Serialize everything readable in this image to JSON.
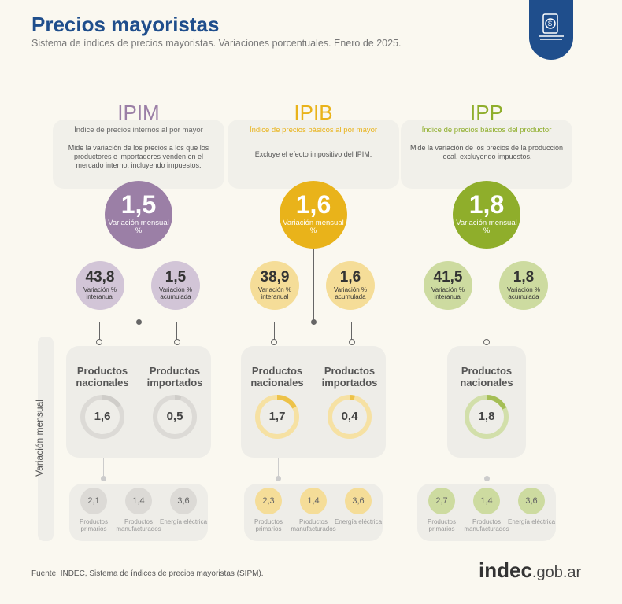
{
  "header": {
    "title": "Precios mayoristas",
    "subtitle": "Sistema de índices de precios mayoristas. Variaciones porcentuales. Enero de 2025.",
    "icon": "price-tag-document-icon"
  },
  "side_label": "Variación mensual",
  "labels": {
    "mensual": "Variación mensual %",
    "interanual": "Variación % interanual",
    "acumulada": "Variación % acumulada"
  },
  "columns": [
    {
      "name": "IPIM",
      "color": "#9b7fa6",
      "full": "Índice de precios internos al por mayor",
      "description": "Mide la variación de los precios a los que los productores e importadores venden en el mercado interno, incluyendo impuestos.",
      "mensual": "1,5",
      "interanual": "43,8",
      "acumulada": "1,5",
      "products": [
        {
          "label": "Productos nacionales",
          "value": "1,6"
        },
        {
          "label": "Productos importados",
          "value": "0,5"
        }
      ],
      "sub": [
        {
          "value": "2,1",
          "label": "Productos primarios"
        },
        {
          "value": "1,4",
          "label": "Productos manufacturados"
        },
        {
          "value": "3,6",
          "label": "Energía eléctrica"
        }
      ]
    },
    {
      "name": "IPIB",
      "color": "#e9b31a",
      "full": "Índice de precios básicos al por mayor",
      "description": "Excluye el efecto impositivo del IPIM.",
      "mensual": "1,6",
      "interanual": "38,9",
      "acumulada": "1,6",
      "products": [
        {
          "label": "Productos nacionales",
          "value": "1,7"
        },
        {
          "label": "Productos importados",
          "value": "0,4"
        }
      ],
      "sub": [
        {
          "value": "2,3",
          "label": "Productos primarios"
        },
        {
          "value": "1,4",
          "label": "Productos manufacturados"
        },
        {
          "value": "3,6",
          "label": "Energía eléctrica"
        }
      ]
    },
    {
      "name": "IPP",
      "color": "#8fae2b",
      "full": "Índice de precios básicos del productor",
      "description": "Mide la variación de los precios de la producción local, excluyendo impuestos.",
      "mensual": "1,8",
      "interanual": "41,5",
      "acumulada": "1,8",
      "products": [
        {
          "label": "Productos nacionales",
          "value": "1,8"
        }
      ],
      "sub": [
        {
          "value": "2,7",
          "label": "Productos primarios"
        },
        {
          "value": "1,4",
          "label": "Productos manufacturados"
        },
        {
          "value": "3,6",
          "label": "Energía eléctrica"
        }
      ]
    }
  ],
  "footer": {
    "source": "Fuente: INDEC, Sistema de índices de precios mayoristas (SIPM).",
    "logo": "indec.gob.ar"
  }
}
